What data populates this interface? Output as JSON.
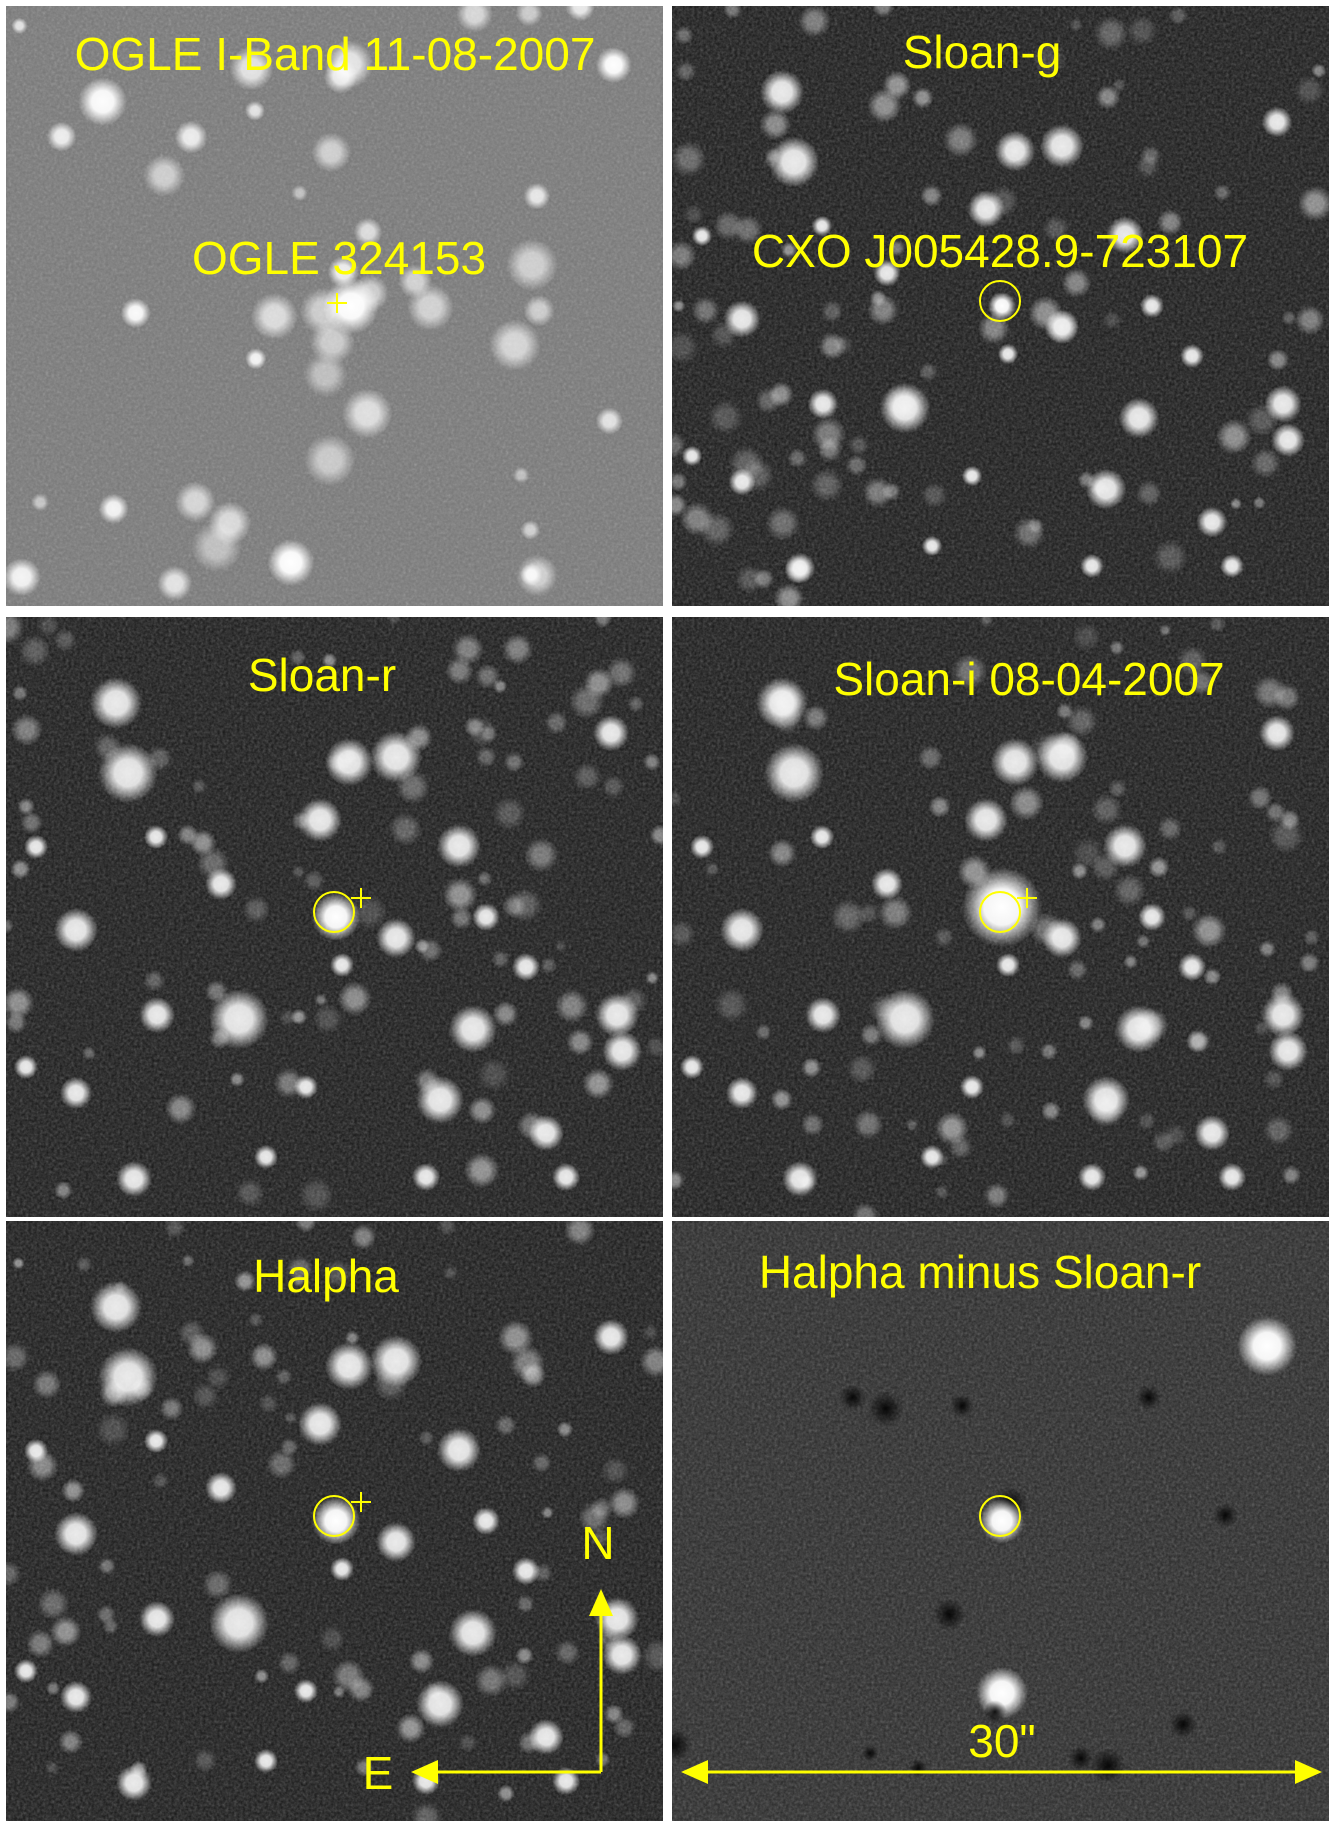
{
  "panels": [
    {
      "label": "OGLE I-Band 11-08-2007",
      "sublabel": "OGLE 324153"
    },
    {
      "label": "Sloan-g",
      "sublabel": "CXO J005428.9-723107"
    },
    {
      "label": "Sloan-r"
    },
    {
      "label": "Sloan-i  08-04-2007"
    },
    {
      "label": "Halpha"
    },
    {
      "label": "Halpha minus Sloan-r"
    }
  ],
  "compass": {
    "north": "N",
    "east": "E"
  },
  "scale_bar": {
    "label": "30\""
  }
}
